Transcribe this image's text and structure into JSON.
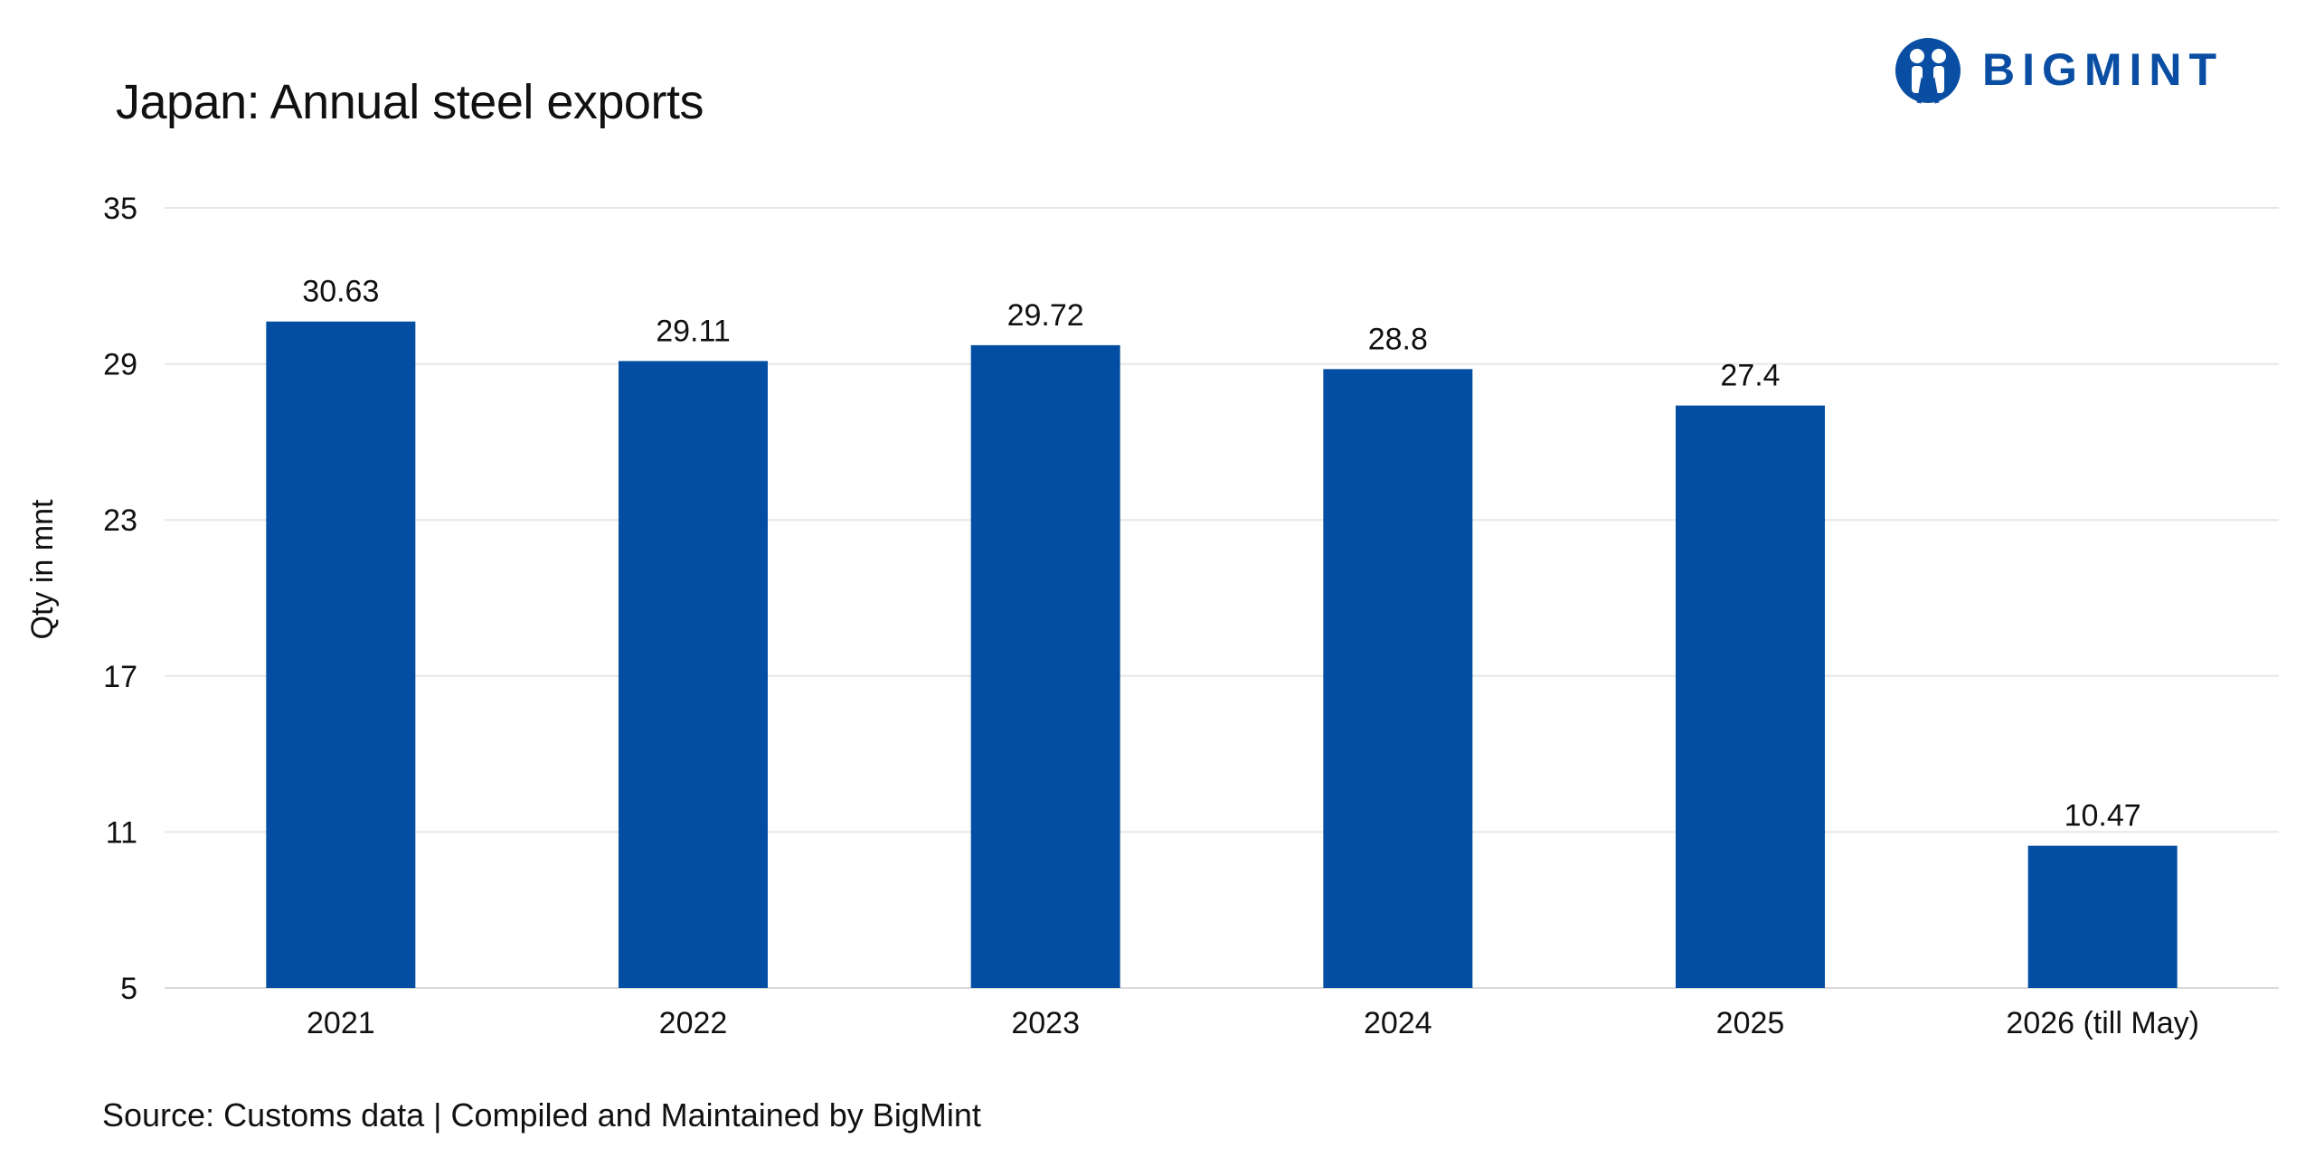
{
  "brand": {
    "name": "BIGMINT",
    "color": "#0a4ea3"
  },
  "source_note": "Source: Customs data | Compiled and Maintained by BigMint",
  "chart_data": {
    "type": "bar",
    "title": "Japan: Annual steel exports",
    "xlabel": "",
    "ylabel": "Qty in mnt",
    "categories": [
      "2021",
      "2022",
      "2023",
      "2024",
      "2025",
      "2026 (till May)"
    ],
    "values": [
      30.63,
      29.11,
      29.72,
      28.8,
      27.4,
      10.47
    ],
    "data_labels": [
      "30.63",
      "29.11",
      "29.72",
      "28.8",
      "27.4",
      "10.47"
    ],
    "ylim": [
      5,
      35
    ],
    "yticks": [
      5,
      11,
      17,
      23,
      29,
      35
    ],
    "grid": true,
    "legend": "none",
    "bar_color": "#034ea2"
  }
}
